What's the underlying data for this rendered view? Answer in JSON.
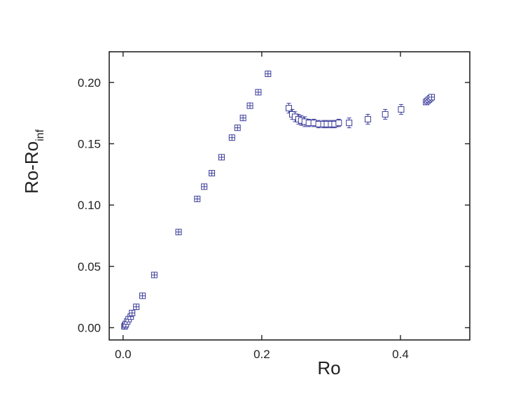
{
  "chart_data": {
    "type": "scatter",
    "xlabel": "Ro",
    "ylabel_main": "Ro-Ro",
    "ylabel_sub": "inf",
    "xlim": [
      -0.02,
      0.5
    ],
    "ylim": [
      -0.01,
      0.225
    ],
    "xticks": [
      0.0,
      0.2,
      0.4
    ],
    "xtick_labels": [
      "0.0",
      "0.2",
      "0.4"
    ],
    "yticks": [
      0.0,
      0.05,
      0.1,
      0.15,
      0.2
    ],
    "ytick_labels": [
      "0.00",
      "0.05",
      "0.10",
      "0.15",
      "0.20"
    ],
    "marker_color": "#3b3b9a",
    "series": [
      {
        "marker": "square-cross",
        "x": [
          0.002,
          0.003,
          0.004,
          0.006,
          0.008,
          0.011,
          0.013,
          0.019,
          0.028,
          0.045,
          0.08,
          0.107,
          0.117,
          0.128,
          0.142,
          0.157,
          0.165,
          0.173,
          0.183,
          0.195,
          0.209
        ],
        "y": [
          0.001,
          0.002,
          0.003,
          0.005,
          0.007,
          0.009,
          0.012,
          0.017,
          0.026,
          0.043,
          0.078,
          0.105,
          0.115,
          0.126,
          0.139,
          0.155,
          0.163,
          0.171,
          0.181,
          0.192,
          0.207
        ],
        "yerr": [
          0.0005,
          0.0005,
          0.0005,
          0.0005,
          0.0005,
          0.0005,
          0.0005,
          0.0005,
          0.0005,
          0.0005,
          0.0005,
          0.0005,
          0.0005,
          0.0005,
          0.0005,
          0.0005,
          0.0005,
          0.0005,
          0.0005,
          0.0005,
          0.0005
        ]
      },
      {
        "marker": "square-open",
        "x": [
          0.239,
          0.244,
          0.248,
          0.253,
          0.257,
          0.262,
          0.268,
          0.275,
          0.282,
          0.289,
          0.294,
          0.3,
          0.305,
          0.311,
          0.326,
          0.353,
          0.378,
          0.401
        ],
        "y": [
          0.179,
          0.174,
          0.172,
          0.17,
          0.169,
          0.168,
          0.167,
          0.167,
          0.166,
          0.166,
          0.166,
          0.166,
          0.166,
          0.167,
          0.167,
          0.17,
          0.174,
          0.178
        ],
        "yerr": [
          0.004,
          0.004,
          0.004,
          0.004,
          0.004,
          0.004,
          0.003,
          0.003,
          0.003,
          0.003,
          0.003,
          0.003,
          0.003,
          0.003,
          0.004,
          0.004,
          0.004,
          0.004
        ]
      },
      {
        "marker": "square-cross",
        "x": [
          0.437,
          0.439,
          0.441,
          0.443,
          0.445
        ],
        "y": [
          0.184,
          0.185,
          0.186,
          0.187,
          0.188
        ],
        "yerr": [
          0.002,
          0.002,
          0.002,
          0.002,
          0.002
        ]
      }
    ]
  }
}
